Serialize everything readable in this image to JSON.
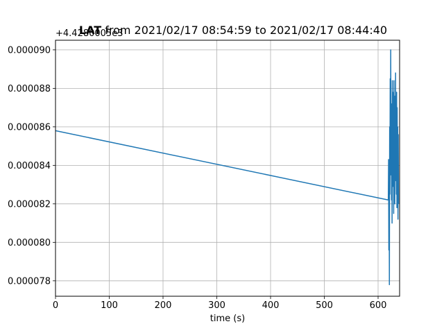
{
  "chart_data": {
    "type": "line",
    "title_main": "LAT",
    "title_rest": " from 2021/02/17 08:54:59 to 2021/02/17 08:44:40",
    "xlabel": "time (s)",
    "ylabel": "",
    "offset_label": "+4.4280005e3",
    "xlim": [
      0,
      640
    ],
    "ylim": [
      7.72e-05,
      9.05e-05
    ],
    "xticks": [
      0,
      100,
      200,
      300,
      400,
      500,
      600
    ],
    "xtick_labels": [
      "0",
      "100",
      "200",
      "300",
      "400",
      "500",
      "600"
    ],
    "yticks": [
      7.8e-05,
      8e-05,
      8.2e-05,
      8.4e-05,
      8.6e-05,
      8.8e-05,
      9e-05
    ],
    "ytick_labels": [
      "0.000078",
      "0.000080",
      "0.000082",
      "0.000084",
      "0.000086",
      "0.000088",
      "0.000090"
    ],
    "grid": true,
    "series": [
      {
        "color": "#1f77b4",
        "x": [
          0,
          619,
          619.5,
          620,
          620.5,
          621,
          621.5,
          622,
          622.5,
          623,
          623.5,
          624,
          624.5,
          625,
          625.5,
          626,
          626.5,
          627,
          627.5,
          628,
          628.5,
          629,
          629.5,
          630,
          630.5,
          631,
          631.5,
          632,
          632.5,
          633,
          633.5,
          634,
          634.5,
          635,
          635.5,
          636,
          636.5,
          637,
          637.5,
          638
        ],
        "y": [
          8.58e-05,
          8.22e-05,
          8.43e-05,
          7.96e-05,
          8.38e-05,
          7.78e-05,
          8.6e-05,
          8.25e-05,
          8.85e-05,
          8.35e-05,
          9e-05,
          8.42e-05,
          8.72e-05,
          8.22e-05,
          8.66e-05,
          8.1e-05,
          8.84e-05,
          8.35e-05,
          8.78e-05,
          8.29e-05,
          8.7e-05,
          8.15e-05,
          8.84e-05,
          8.4e-05,
          8.68e-05,
          8.2e-05,
          8.76e-05,
          8.35e-05,
          8.88e-05,
          8.32e-05,
          8.62e-05,
          8.25e-05,
          8.78e-05,
          8.18e-05,
          8.7e-05,
          8.3e-05,
          8.6e-05,
          8.12e-05,
          8.56e-05,
          8.2e-05
        ]
      }
    ]
  }
}
